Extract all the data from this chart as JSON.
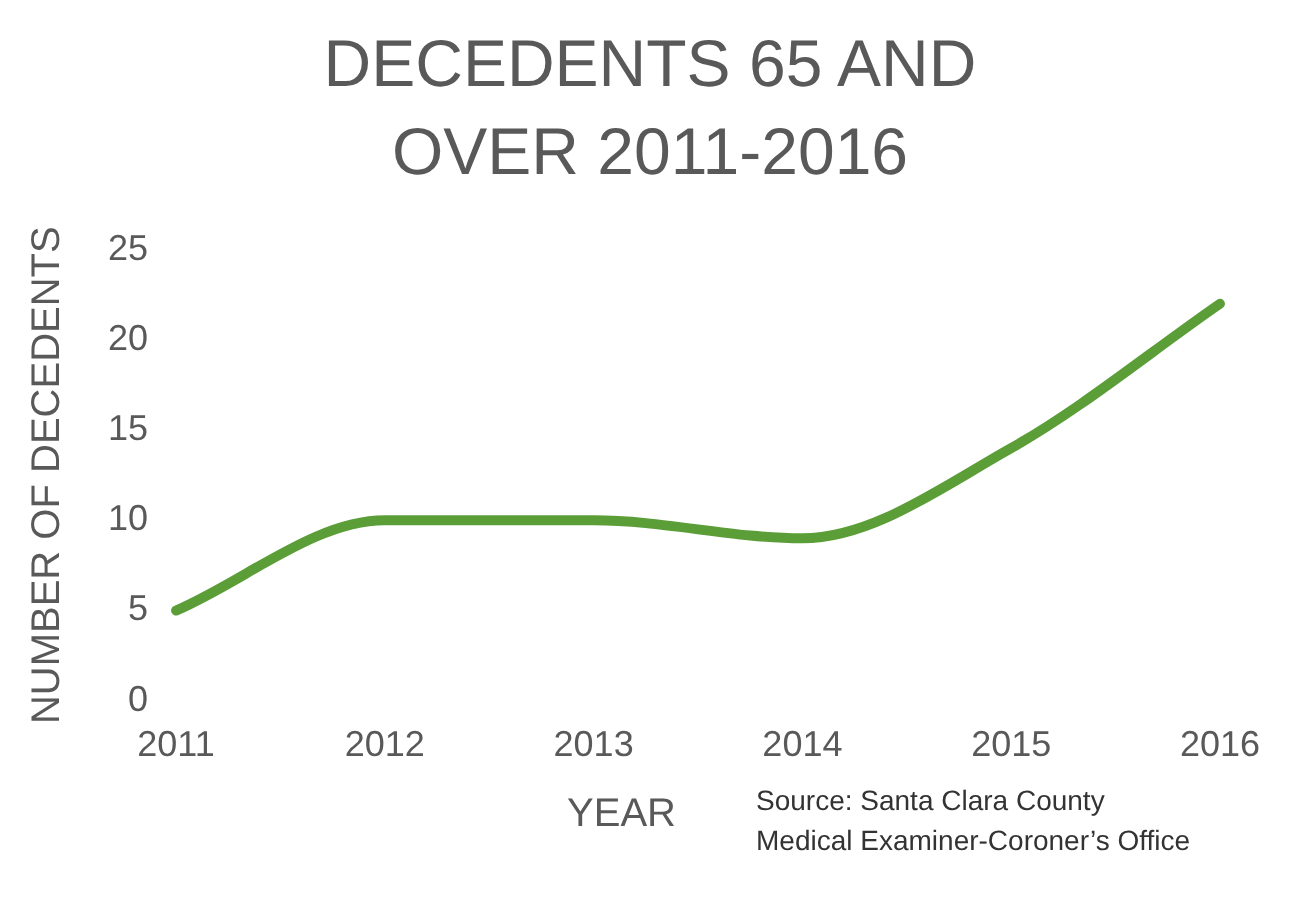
{
  "chart_data": {
    "type": "line",
    "title": "DECEDENTS 65 AND OVER 2011-2016",
    "xlabel": "YEAR",
    "ylabel": "NUMBER OF DECEDENTS",
    "categories": [
      "2011",
      "2012",
      "2013",
      "2014",
      "2015",
      "2016"
    ],
    "series": [
      {
        "color": "#5b9e38",
        "values": [
          5,
          10,
          10,
          9,
          14,
          22
        ]
      }
    ],
    "ylim": [
      0,
      25
    ],
    "yticks": [
      0,
      5,
      10,
      15,
      20,
      25
    ],
    "grid": false,
    "legend": false,
    "marker": "none",
    "line_style": "solid",
    "annotations": [
      "Source: Santa Clara County Medical Examiner-Coroner’s Office"
    ]
  }
}
